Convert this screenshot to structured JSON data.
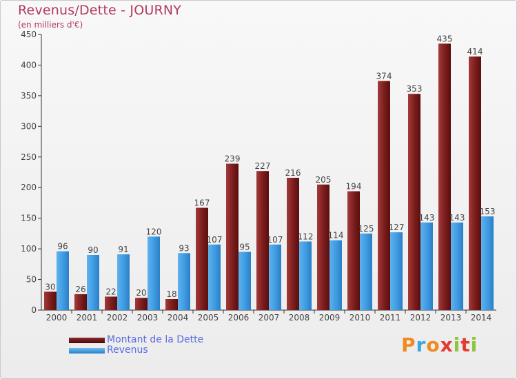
{
  "title": "Revenus/Dette - JOURNY",
  "subtitle": "(en milliers d'€)",
  "logo_text": "Proxiti",
  "colors": {
    "dette": "#7a1a1a",
    "revenus": "#3f9ae0",
    "title": "#b23a5c",
    "legend_text": "#5a6be0"
  },
  "legend": {
    "dette_label": "Montant de la Dette",
    "revenus_label": "Revenus"
  },
  "chart_data": {
    "type": "bar",
    "categories": [
      "2000",
      "2001",
      "2002",
      "2003",
      "2004",
      "2005",
      "2006",
      "2007",
      "2008",
      "2009",
      "2010",
      "2011",
      "2012",
      "2013",
      "2014"
    ],
    "series": [
      {
        "name": "Montant de la Dette",
        "values": [
          30,
          26,
          22,
          20,
          18,
          167,
          239,
          227,
          216,
          205,
          194,
          374,
          353,
          435,
          414
        ]
      },
      {
        "name": "Revenus",
        "values": [
          96,
          90,
          91,
          120,
          93,
          107,
          95,
          107,
          112,
          114,
          125,
          127,
          143,
          143,
          153
        ]
      }
    ],
    "ylim": [
      0,
      450
    ],
    "yticks": [
      0,
      50,
      100,
      150,
      200,
      250,
      300,
      350,
      400,
      450
    ],
    "grid": false,
    "legend_position": "bottom-left"
  }
}
